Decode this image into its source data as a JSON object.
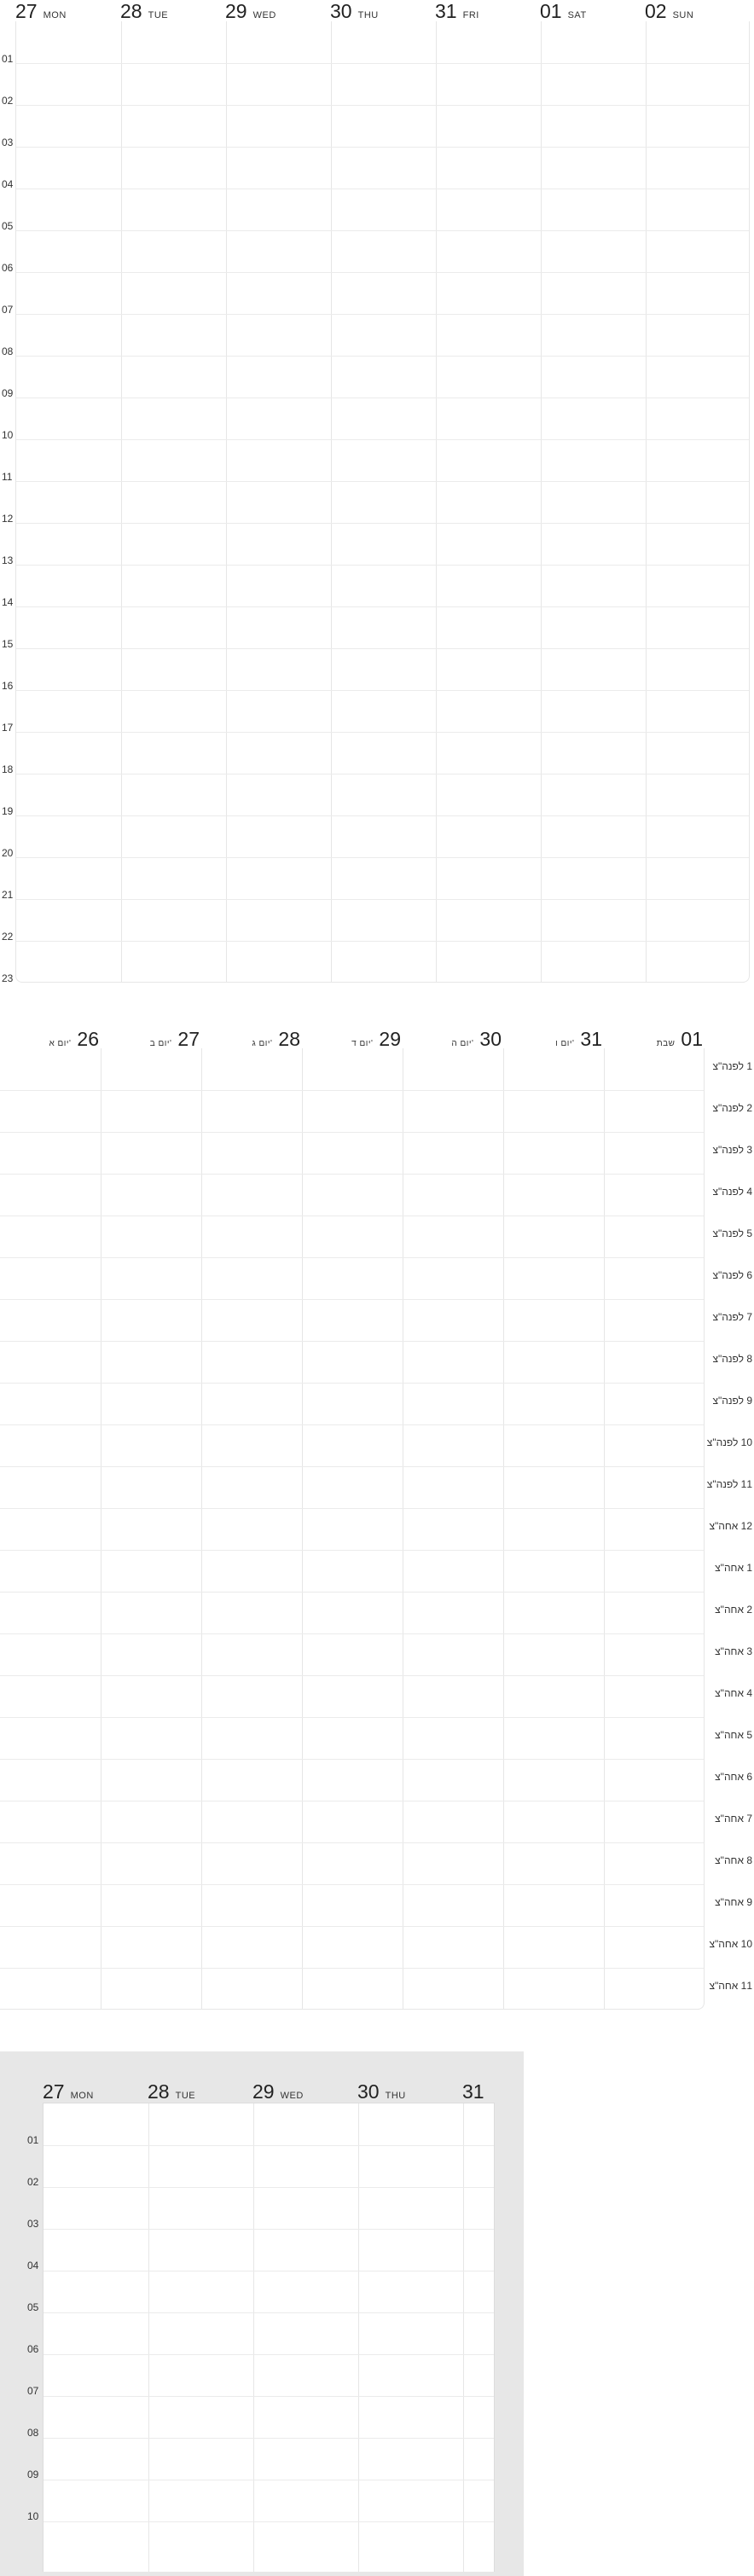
{
  "week_view_en": {
    "days": [
      {
        "num": "27",
        "name": "MON"
      },
      {
        "num": "28",
        "name": "TUE"
      },
      {
        "num": "29",
        "name": "WED"
      },
      {
        "num": "30",
        "name": "THU"
      },
      {
        "num": "31",
        "name": "FRI"
      },
      {
        "num": "01",
        "name": "SAT"
      },
      {
        "num": "02",
        "name": "SUN"
      }
    ],
    "hours": [
      "01",
      "02",
      "03",
      "04",
      "05",
      "06",
      "07",
      "08",
      "09",
      "10",
      "11",
      "12",
      "13",
      "14",
      "15",
      "16",
      "17",
      "18",
      "19",
      "20",
      "21",
      "22",
      "23"
    ]
  },
  "week_view_he": {
    "days": [
      {
        "num": "01",
        "name": "שבת"
      },
      {
        "num": "31",
        "name": "יום ו'"
      },
      {
        "num": "30",
        "name": "יום ה'"
      },
      {
        "num": "29",
        "name": "יום ד'"
      },
      {
        "num": "28",
        "name": "יום ג'"
      },
      {
        "num": "27",
        "name": "יום ב'"
      },
      {
        "num": "26",
        "name": "יום א'"
      }
    ],
    "hours": [
      "1 לפנה\"צ",
      "2 לפנה\"צ",
      "3 לפנה\"צ",
      "4 לפנה\"צ",
      "5 לפנה\"צ",
      "6 לפנה\"צ",
      "7 לפנה\"צ",
      "8 לפנה\"צ",
      "9 לפנה\"צ",
      "10 לפנה\"צ",
      "11 לפנה\"צ",
      "12 אחה\"צ",
      "1 אחה\"צ",
      "2 אחה\"צ",
      "3 אחה\"צ",
      "4 אחה\"צ",
      "5 אחה\"צ",
      "6 אחה\"צ",
      "7 אחה\"צ",
      "8 אחה\"צ",
      "9 אחה\"צ",
      "10 אחה\"צ",
      "11 אחה\"צ"
    ]
  },
  "week_view_small": {
    "days": [
      {
        "num": "27",
        "name": "MON"
      },
      {
        "num": "28",
        "name": "TUE"
      },
      {
        "num": "29",
        "name": "WED"
      },
      {
        "num": "30",
        "name": "THU"
      },
      {
        "num": "31",
        "name": ""
      }
    ],
    "hours": [
      "01",
      "02",
      "03",
      "04",
      "05",
      "06",
      "07",
      "08",
      "09",
      "10"
    ]
  },
  "colors": {
    "grid_line": "#e6e6e6",
    "frame_background": "#e7e7e7",
    "text": "#222222"
  }
}
